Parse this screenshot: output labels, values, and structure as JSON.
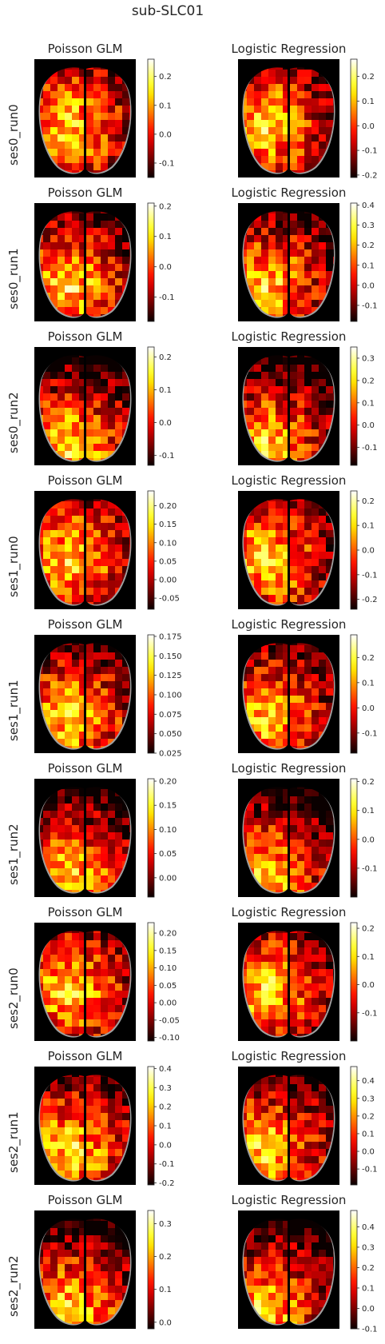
{
  "title": "sub-SLC01",
  "model_titles": [
    "Poisson GLM",
    "Logistic Regression"
  ],
  "rows": [
    {
      "label": "ses0_run0",
      "panels": [
        {
          "cbar": {
            "vmin": -0.15,
            "vmax": 0.26,
            "ticks": [
              "-0.1",
              "0.0",
              "0.1",
              "0.2"
            ],
            "tickvals": [
              -0.1,
              0.0,
              0.1,
              0.2
            ]
          }
        },
        {
          "cbar": {
            "vmin": -0.21,
            "vmax": 0.27,
            "ticks": [
              "-0.2",
              "-0.1",
              "0.0",
              "0.1",
              "0.2"
            ],
            "tickvals": [
              -0.2,
              -0.1,
              0.0,
              0.1,
              0.2
            ]
          }
        }
      ]
    },
    {
      "label": "ses0_run1",
      "panels": [
        {
          "cbar": {
            "vmin": -0.18,
            "vmax": 0.21,
            "ticks": [
              "-0.1",
              "0.0",
              "0.1",
              "0.2"
            ],
            "tickvals": [
              -0.1,
              0.0,
              0.1,
              0.2
            ]
          }
        },
        {
          "cbar": {
            "vmin": -0.18,
            "vmax": 0.41,
            "ticks": [
              "-0.1",
              "0.0",
              "0.1",
              "0.2",
              "0.3",
              "0.4"
            ],
            "tickvals": [
              -0.1,
              0.0,
              0.1,
              0.2,
              0.3,
              0.4
            ]
          }
        }
      ]
    },
    {
      "label": "ses0_run2",
      "panels": [
        {
          "cbar": {
            "vmin": -0.13,
            "vmax": 0.23,
            "ticks": [
              "-0.1",
              "0.0",
              "0.1",
              "0.2"
            ],
            "tickvals": [
              -0.1,
              0.0,
              0.1,
              0.2
            ]
          }
        },
        {
          "cbar": {
            "vmin": -0.18,
            "vmax": 0.35,
            "ticks": [
              "-0.1",
              "0.0",
              "0.1",
              "0.2",
              "0.3"
            ],
            "tickvals": [
              -0.1,
              0.0,
              0.1,
              0.2,
              0.3
            ]
          }
        }
      ]
    },
    {
      "label": "ses1_run0",
      "panels": [
        {
          "cbar": {
            "vmin": -0.08,
            "vmax": 0.24,
            "ticks": [
              "-0.05",
              "0.00",
              "0.05",
              "0.10",
              "0.15",
              "0.20"
            ],
            "tickvals": [
              -0.05,
              0.0,
              0.05,
              0.1,
              0.15,
              0.2
            ]
          }
        },
        {
          "cbar": {
            "vmin": -0.24,
            "vmax": 0.24,
            "ticks": [
              "-0.2",
              "-0.1",
              "0.0",
              "0.1",
              "0.2"
            ],
            "tickvals": [
              -0.2,
              -0.1,
              0.0,
              0.1,
              0.2
            ]
          }
        }
      ]
    },
    {
      "label": "ses1_run1",
      "panels": [
        {
          "cbar": {
            "vmin": 0.025,
            "vmax": 0.177,
            "ticks": [
              "0.025",
              "0.050",
              "0.075",
              "0.100",
              "0.125",
              "0.150",
              "0.175"
            ],
            "tickvals": [
              0.025,
              0.05,
              0.075,
              0.1,
              0.125,
              0.15,
              0.175
            ]
          }
        },
        {
          "cbar": {
            "vmin": -0.18,
            "vmax": 0.29,
            "ticks": [
              "-0.1",
              "0.0",
              "0.1",
              "0.2"
            ],
            "tickvals": [
              -0.1,
              0.0,
              0.1,
              0.2
            ]
          }
        }
      ]
    },
    {
      "label": "ses1_run2",
      "panels": [
        {
          "cbar": {
            "vmin": -0.04,
            "vmax": 0.205,
            "ticks": [
              "0.00",
              "0.05",
              "0.10",
              "0.15",
              "0.20"
            ],
            "tickvals": [
              0.0,
              0.05,
              0.1,
              0.15,
              0.2
            ]
          }
        },
        {
          "cbar": {
            "vmin": -0.2,
            "vmax": 0.21,
            "ticks": [
              "-0.1",
              "0.0",
              "0.1",
              "0.2"
            ],
            "tickvals": [
              -0.1,
              0.0,
              0.1,
              0.2
            ]
          }
        }
      ]
    },
    {
      "label": "ses2_run0",
      "panels": [
        {
          "cbar": {
            "vmin": -0.11,
            "vmax": 0.23,
            "ticks": [
              "-0.10",
              "-0.05",
              "0.00",
              "0.05",
              "0.10",
              "0.15",
              "0.20"
            ],
            "tickvals": [
              -0.1,
              -0.05,
              0.0,
              0.05,
              0.1,
              0.15,
              0.2
            ]
          }
        },
        {
          "cbar": {
            "vmin": -0.2,
            "vmax": 0.22,
            "ticks": [
              "-0.1",
              "0.0",
              "0.1",
              "0.2"
            ],
            "tickvals": [
              -0.1,
              0.0,
              0.1,
              0.2
            ]
          }
        }
      ]
    },
    {
      "label": "ses2_run1",
      "panels": [
        {
          "cbar": {
            "vmin": -0.21,
            "vmax": 0.41,
            "ticks": [
              "-0.2",
              "-0.1",
              "0.0",
              "0.1",
              "0.2",
              "0.3",
              "0.4"
            ],
            "tickvals": [
              -0.2,
              -0.1,
              0.0,
              0.1,
              0.2,
              0.3,
              0.4
            ]
          }
        },
        {
          "cbar": {
            "vmin": -0.19,
            "vmax": 0.48,
            "ticks": [
              "-0.1",
              "0.0",
              "0.1",
              "0.2",
              "0.3",
              "0.4"
            ],
            "tickvals": [
              -0.1,
              0.0,
              0.1,
              0.2,
              0.3,
              0.4
            ]
          }
        }
      ]
    },
    {
      "label": "ses2_run2",
      "panels": [
        {
          "cbar": {
            "vmin": -0.02,
            "vmax": 0.34,
            "ticks": [
              "0.0",
              "0.1",
              "0.2",
              "0.3"
            ],
            "tickvals": [
              0.0,
              0.1,
              0.2,
              0.3
            ]
          }
        },
        {
          "cbar": {
            "vmin": -0.1,
            "vmax": 0.48,
            "ticks": [
              "-0.1",
              "0.0",
              "0.1",
              "0.2",
              "0.3",
              "0.4"
            ],
            "tickvals": [
              -0.1,
              0.0,
              0.1,
              0.2,
              0.3,
              0.4
            ]
          }
        }
      ]
    }
  ],
  "chart_data": {
    "type": "heatmap",
    "title": "sub-SLC01",
    "colormap": "hot",
    "background_color": "#000000",
    "outline_color": "#a0a0a0",
    "grid": false
  }
}
